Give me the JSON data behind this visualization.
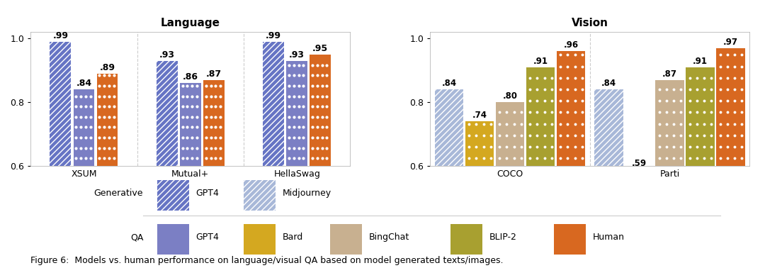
{
  "language_title": "Language",
  "vision_title": "Vision",
  "figure_caption": "Figure 6:  Models vs. human performance on language/visual QA based on model generated texts/images.",
  "language_groups": [
    "XSUM",
    "Mutual+",
    "HellaSwag"
  ],
  "language_data": {
    "XSUM": {
      "generative_gpt4": 0.99,
      "qa_gpt4": 0.84,
      "human": 0.89
    },
    "Mutual+": {
      "generative_gpt4": 0.93,
      "qa_gpt4": 0.86,
      "human": 0.87
    },
    "HellaSwag": {
      "generative_gpt4": 0.99,
      "qa_gpt4": 0.93,
      "human": 0.95
    }
  },
  "vision_groups": [
    "COCO",
    "Parti"
  ],
  "vision_data": {
    "COCO": {
      "generative_midjourney": 0.84,
      "qa_bard": 0.74,
      "qa_bingchat": 0.8,
      "qa_blip2": 0.91,
      "human": 0.96
    },
    "Parti": {
      "generative_midjourney": 0.84,
      "qa_bard": 0.59,
      "qa_bingchat": 0.87,
      "qa_blip2": 0.91,
      "human": 0.97
    }
  },
  "colors": {
    "generative_gpt4": "#6674C4",
    "generative_midjourney": "#A8B8D8",
    "qa_gpt4": "#7B7FC4",
    "qa_bard": "#D4A820",
    "qa_bingchat": "#C8B090",
    "qa_blip2": "#A8A030",
    "human": "#D86820"
  },
  "ylim": [
    0.6,
    1.02
  ],
  "yticks": [
    0.6,
    0.8,
    1.0
  ],
  "bar_width": 0.22,
  "font_size_title": 11,
  "font_size_label": 9,
  "font_size_tick": 9,
  "font_size_caption": 9,
  "background_color": "#FFFFFF"
}
